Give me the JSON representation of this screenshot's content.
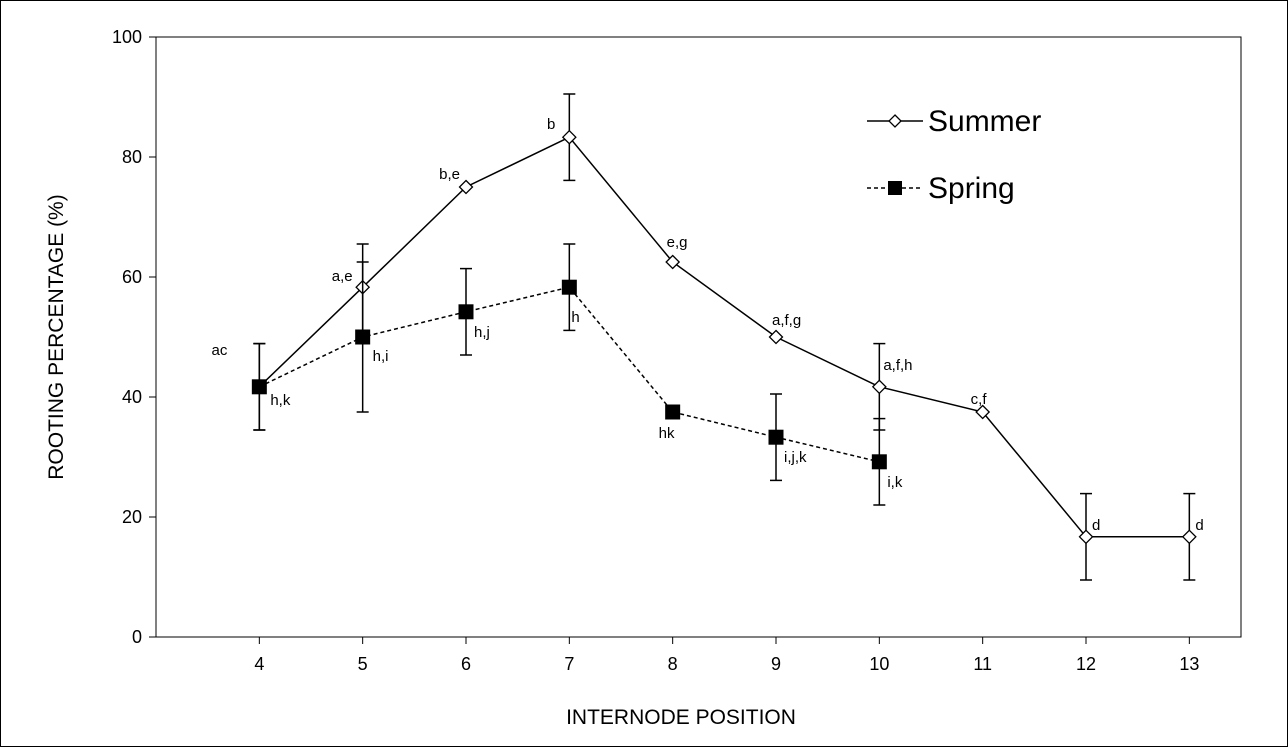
{
  "chart_data": {
    "type": "line",
    "xlabel": "INTERNODE POSITION",
    "ylabel": "ROOTING PERCENTAGE (%)",
    "xlim": [
      3,
      13.5
    ],
    "ylim": [
      0,
      100
    ],
    "x_ticks": [
      "4",
      "5",
      "6",
      "7",
      "8",
      "9",
      "10",
      "11",
      "12",
      "13"
    ],
    "y_ticks": [
      "0",
      "20",
      "40",
      "60",
      "80",
      "100"
    ],
    "grid": false,
    "legend": {
      "position": "top-right"
    },
    "series": [
      {
        "name": "Summer",
        "line_style": "solid",
        "marker": "open-diamond",
        "x": [
          4,
          5,
          6,
          7,
          8,
          9,
          10,
          11,
          12,
          13
        ],
        "y": [
          41.7,
          58.3,
          75.0,
          83.3,
          62.5,
          50.0,
          41.7,
          37.5,
          16.7,
          16.7
        ],
        "error": [
          7.2,
          7.2,
          null,
          7.2,
          null,
          null,
          7.2,
          null,
          7.2,
          7.2
        ],
        "labels": [
          "ac",
          "a,e",
          "b,e",
          "b",
          "e,g",
          "a,f,g",
          "a,f,h",
          "c,f",
          "d",
          "d"
        ]
      },
      {
        "name": "Spring",
        "line_style": "dashed",
        "marker": "filled-square",
        "x": [
          4,
          5,
          6,
          7,
          8,
          9,
          10
        ],
        "y": [
          41.7,
          50.0,
          54.2,
          58.3,
          37.5,
          33.3,
          29.2
        ],
        "error": [
          7.2,
          12.5,
          7.2,
          7.2,
          null,
          7.2,
          7.2
        ],
        "labels": [
          "h,k",
          "h,i",
          "h,j",
          "h",
          "hk",
          "i,j,k",
          "i,k"
        ]
      }
    ]
  }
}
